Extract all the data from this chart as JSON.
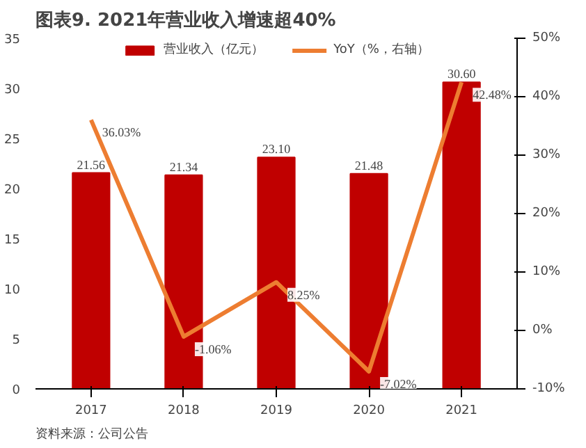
{
  "chart_data": {
    "type": "bar",
    "title": "图表9.   2021年营业收入增速超40%",
    "categories": [
      "2017",
      "2018",
      "2019",
      "2020",
      "2021"
    ],
    "series": [
      {
        "name": "营业收入（亿元）",
        "color": "#c00000",
        "values": [
          21.56,
          21.34,
          23.1,
          21.48,
          30.6
        ],
        "value_labels": [
          "21.56",
          "21.34",
          "23.10",
          "21.48",
          "30.60"
        ]
      },
      {
        "name": "YoY（%，右轴）",
        "type": "line",
        "axis": "y2",
        "color": "#ed7d31",
        "values": [
          36.03,
          -1.06,
          8.25,
          -7.02,
          42.48
        ],
        "value_labels": [
          "36.03%",
          "-1.06%",
          "8.25%",
          "-7.02%",
          "42.48%"
        ]
      }
    ],
    "ylim": [
      0,
      35
    ],
    "yticks": [
      0,
      5,
      10,
      15,
      20,
      25,
      30,
      35
    ],
    "y2lim": [
      -10,
      50
    ],
    "y2ticks": [
      {
        "value": -10,
        "label": "-10%"
      },
      {
        "value": 0,
        "label": "0%"
      },
      {
        "value": 10,
        "label": "10%"
      },
      {
        "value": 20,
        "label": "20%"
      },
      {
        "value": 30,
        "label": "30%"
      },
      {
        "value": 40,
        "label": "40%"
      },
      {
        "value": 50,
        "label": "50%"
      }
    ],
    "legend": "top",
    "grid": false,
    "marker": "none",
    "line_style": "solid",
    "annotations": [
      "资料来源：公司公告"
    ]
  }
}
